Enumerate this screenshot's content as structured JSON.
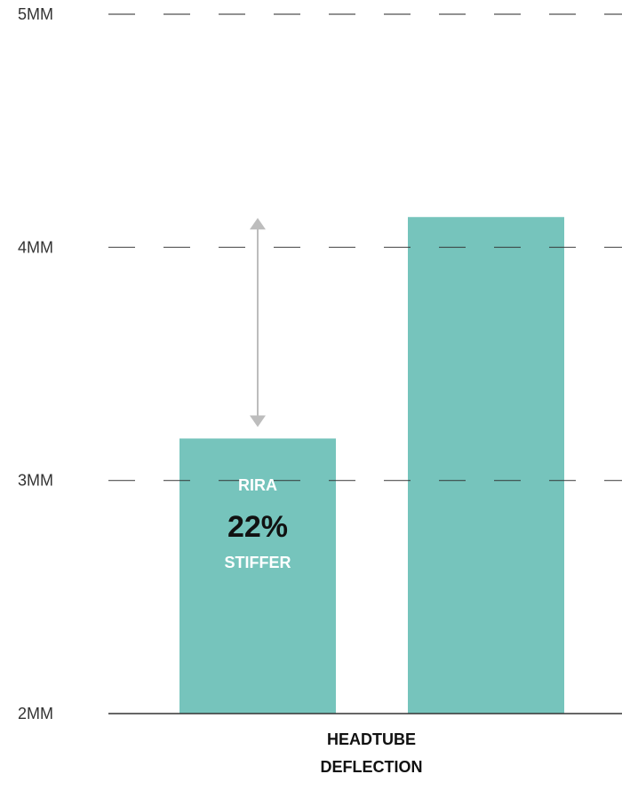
{
  "chart_data": {
    "type": "bar",
    "categories": [
      "",
      ""
    ],
    "values": [
      3.18,
      4.13
    ],
    "ylim": [
      2,
      5
    ],
    "y_ticks": [
      {
        "value": 5,
        "label": "5MM"
      },
      {
        "value": 4,
        "label": "4MM"
      },
      {
        "value": 3,
        "label": "3MM"
      },
      {
        "value": 2,
        "label": "2MM"
      }
    ],
    "grid": "dashed",
    "xlabel_lines": [
      "HEADTUBE",
      "DEFLECTION"
    ],
    "annotation": {
      "name": "RIRA",
      "value": "22%",
      "sub": "STIFFER"
    },
    "colors": {
      "bar": "#76c4bc",
      "grid": "#333333",
      "arrow": "#bdbdbd"
    }
  }
}
